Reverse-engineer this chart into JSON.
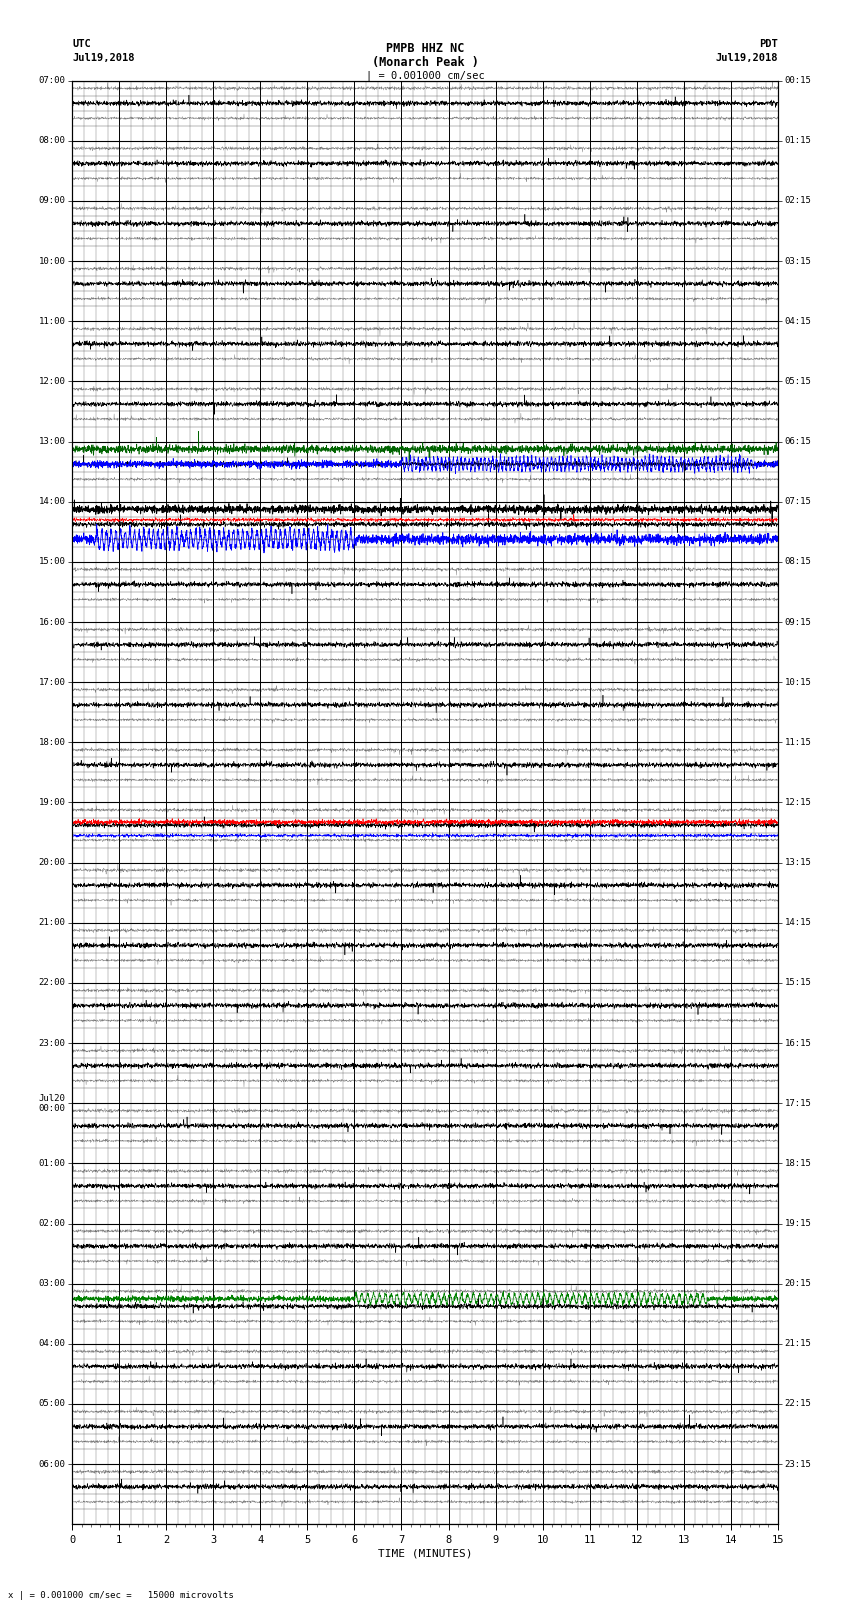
{
  "title_line1": "PMPB HHZ NC",
  "title_line2": "(Monarch Peak )",
  "title_scale": "| = 0.001000 cm/sec",
  "left_header_line1": "UTC",
  "left_header_line2": "Jul19,2018",
  "right_header_line1": "PDT",
  "right_header_line2": "Jul19,2018",
  "bottom_label": "TIME (MINUTES)",
  "bottom_note": "x | = 0.001000 cm/sec =   15000 microvolts",
  "left_labels": [
    "07:00",
    "08:00",
    "09:00",
    "10:00",
    "11:00",
    "12:00",
    "13:00",
    "14:00",
    "15:00",
    "16:00",
    "17:00",
    "18:00",
    "19:00",
    "20:00",
    "21:00",
    "22:00",
    "23:00",
    "Jul20\n00:00",
    "01:00",
    "02:00",
    "03:00",
    "04:00",
    "05:00",
    "06:00"
  ],
  "right_labels": [
    "00:15",
    "01:15",
    "02:15",
    "03:15",
    "04:15",
    "05:15",
    "06:15",
    "07:15",
    "08:15",
    "09:15",
    "10:15",
    "11:15",
    "12:15",
    "13:15",
    "14:15",
    "15:15",
    "16:15",
    "17:15",
    "18:15",
    "19:15",
    "20:15",
    "21:15",
    "22:15",
    "23:15"
  ],
  "background_color": "#ffffff",
  "major_grid_color": "#000000",
  "minor_grid_color": "#555555",
  "fig_width": 8.5,
  "fig_height": 16.13,
  "num_rows": 24,
  "sub_rows": 4
}
